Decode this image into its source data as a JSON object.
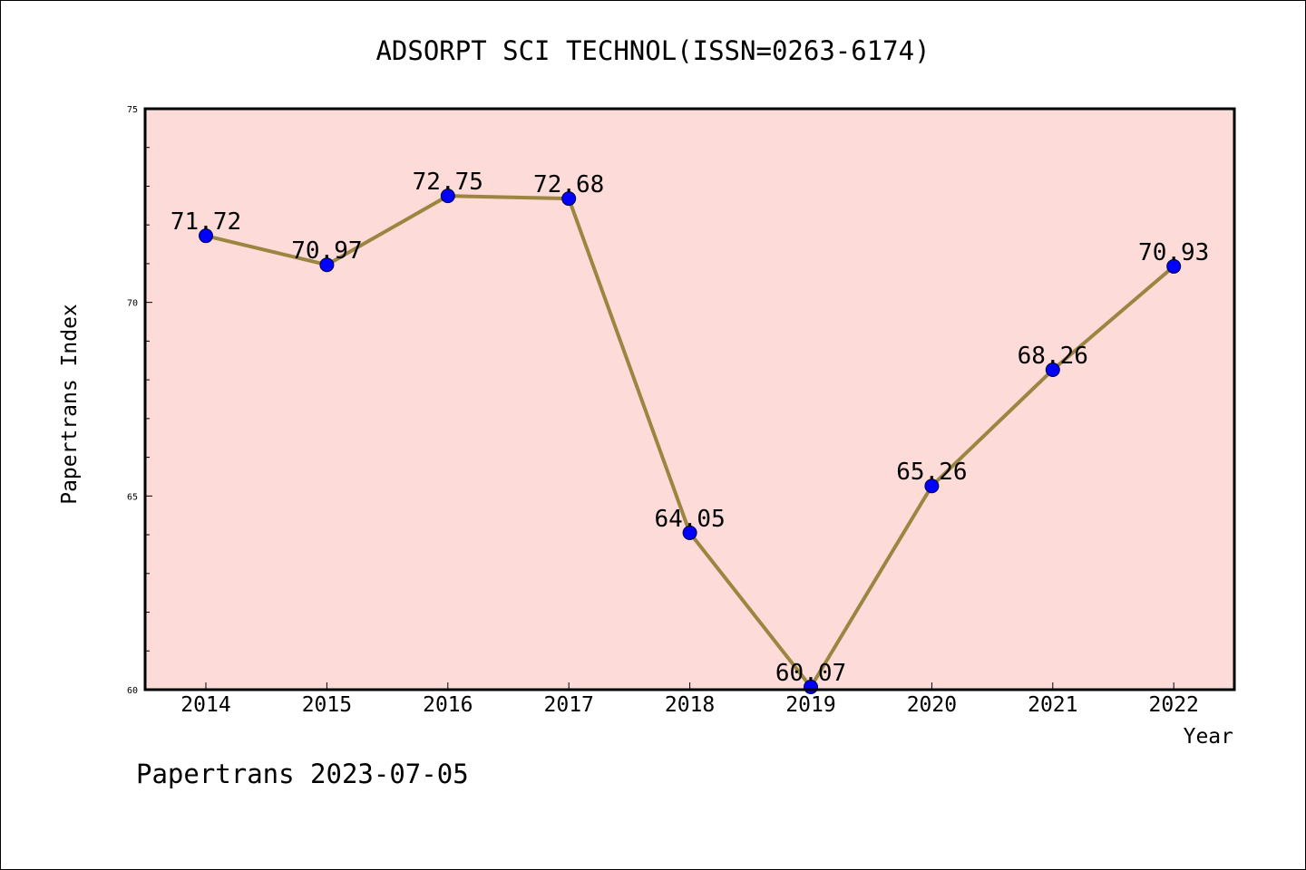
{
  "title": "ADSORPT SCI TECHNOL(ISSN=0263-6174)",
  "footer": "Papertrans 2023-07-05",
  "colors": {
    "plot_background": "#fddbd9",
    "line": "#9b8540",
    "marker": "#0000ff",
    "axis": "#000000"
  },
  "chart_data": {
    "type": "line",
    "title": "ADSORPT SCI TECHNOL(ISSN=0263-6174)",
    "xlabel": "Year",
    "ylabel": "Papertrans Index",
    "categories": [
      "2014",
      "2015",
      "2016",
      "2017",
      "2018",
      "2019",
      "2020",
      "2021",
      "2022"
    ],
    "series": [
      {
        "values": [
          71.72,
          70.97,
          72.75,
          72.68,
          64.05,
          60.07,
          65.26,
          68.26,
          70.93
        ],
        "labels": [
          "71.72",
          "70.97",
          "72.75",
          "72.68",
          "64.05",
          "60.07",
          "65.26",
          "68.26",
          "70.93"
        ]
      }
    ],
    "ylim": [
      60,
      75
    ],
    "yticks": [
      60,
      65,
      70,
      75
    ],
    "ytick_labels": [
      "60",
      "65",
      "70",
      "75"
    ],
    "grid": false,
    "legend": "none"
  }
}
